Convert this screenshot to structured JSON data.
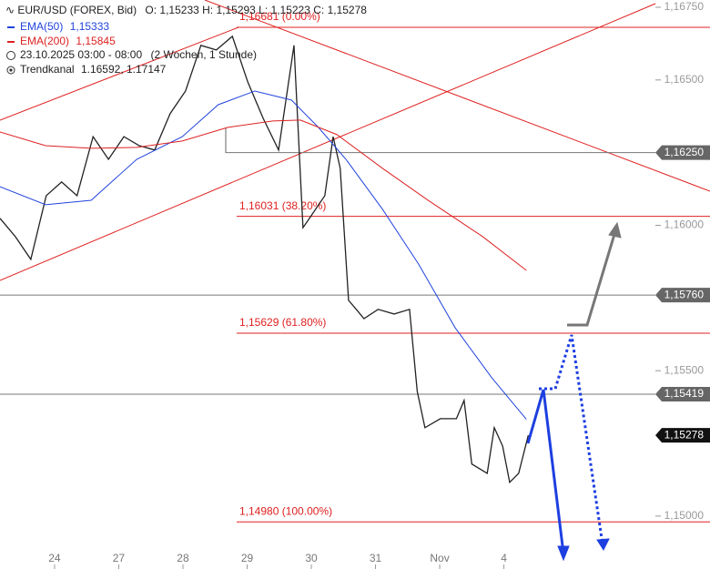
{
  "chart_data": {
    "type": "line",
    "header": {
      "instrument": "EUR/USD (FOREX, Bid)",
      "ohlc": "O: 1,15233  H: 1,15293  L: 1,15223  C: 1,15278",
      "period": "23.10.2025 03:00 - 08:00",
      "interval": "(2 Wochen, 1 Stunde)",
      "channel_name": "Trendkanal",
      "channel_values": "1.16592, 1.17147"
    },
    "categories": [
      "24",
      "27",
      "28",
      "29",
      "30",
      "31",
      "Nov",
      "4"
    ],
    "xticks": [
      0,
      1,
      2,
      3,
      4,
      5,
      6,
      7
    ],
    "xlim": [
      -0.85,
      9.36
    ],
    "ylim": [
      1.14818,
      1.16775
    ],
    "yticks": [
      {
        "value": 1.1675,
        "label": "1,16750"
      },
      {
        "value": 1.165,
        "label": "1,16500"
      },
      {
        "value": 1.16,
        "label": "1,16000"
      },
      {
        "value": 1.155,
        "label": "1,15500"
      },
      {
        "value": 1.15,
        "label": "1,15000"
      }
    ],
    "series": [
      {
        "name": "EUR/USD",
        "color": "#222222",
        "x": [
          -0.85,
          -0.61,
          -0.37,
          -0.13,
          0.11,
          0.35,
          0.6,
          0.84,
          1.08,
          1.32,
          1.56,
          1.8,
          2.04,
          2.28,
          2.52,
          2.77,
          3.01,
          3.25,
          3.49,
          3.73,
          3.87,
          3.97,
          4.21,
          4.34,
          4.45,
          4.58,
          4.7,
          4.82,
          5.04,
          5.29,
          5.53,
          5.65,
          5.77,
          6.01,
          6.26,
          6.38,
          6.5,
          6.74,
          6.85,
          6.98,
          7.09,
          7.23,
          7.38
        ],
        "values": [
          1.16024,
          1.15961,
          1.15883,
          1.16102,
          1.16149,
          1.16102,
          1.16305,
          1.16227,
          1.16305,
          1.16274,
          1.16259,
          1.16384,
          1.16462,
          1.16619,
          1.16603,
          1.1665,
          1.16493,
          1.16368,
          1.16259,
          1.16619,
          1.15992,
          1.16024,
          1.16102,
          1.16305,
          1.16196,
          1.15742,
          1.15711,
          1.15679,
          1.15711,
          1.15695,
          1.15711,
          1.15429,
          1.15304,
          1.15335,
          1.15335,
          1.15398,
          1.15179,
          1.15147,
          1.15304,
          1.15241,
          1.15116,
          1.15147,
          1.15278
        ]
      },
      {
        "name": "EMA(50)",
        "value_label": "1,15333",
        "color": "#2244dd",
        "x": [
          -0.85,
          -0.14,
          0.57,
          1.28,
          1.99,
          2.55,
          3.12,
          3.69,
          4.11,
          4.54,
          5.11,
          5.67,
          6.24,
          6.81,
          7.35
        ],
        "values": [
          1.16133,
          1.16071,
          1.16086,
          1.16227,
          1.16305,
          1.16415,
          1.16462,
          1.16431,
          1.16337,
          1.16227,
          1.16055,
          1.15867,
          1.15648,
          1.15476,
          1.15333
        ]
      },
      {
        "name": "EMA(200)",
        "value_label": "1,15845",
        "color": "#dd2222",
        "x": [
          -0.85,
          -0.14,
          0.57,
          1.28,
          1.99,
          2.7,
          3.4,
          3.83,
          4.4,
          5.11,
          5.82,
          6.67,
          7.35
        ],
        "values": [
          1.16321,
          1.16274,
          1.16265,
          1.16268,
          1.1629,
          1.16337,
          1.16359,
          1.16362,
          1.16312,
          1.16196,
          1.16086,
          1.15961,
          1.15845
        ]
      }
    ],
    "fib_levels": [
      {
        "value": 1.16681,
        "label": "1,16681 (0.00%)"
      },
      {
        "value": 1.16031,
        "label": "1,16031 (38.20%)"
      },
      {
        "value": 1.15629,
        "label": "1,15629 (61.80%)"
      },
      {
        "value": 1.1498,
        "label": "1,14980 (100.00%)"
      }
    ],
    "price_lines": [
      {
        "value": 1.1625,
        "label": "1,16250",
        "color": "#666666"
      },
      {
        "value": 1.1576,
        "label": "1,15760",
        "color": "#666666"
      },
      {
        "value": 1.15419,
        "label": "1,15419",
        "color": "#666666"
      },
      {
        "value": 1.15278,
        "label": "1,15278",
        "color": "#111111"
      }
    ]
  }
}
